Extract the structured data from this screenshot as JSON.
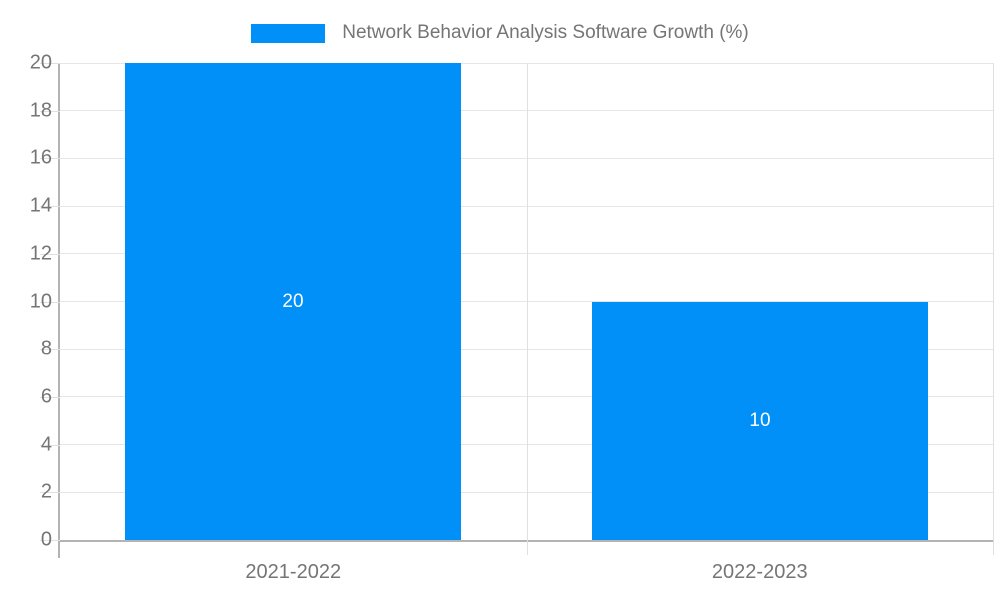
{
  "legend": {
    "label": "Network Behavior Analysis Software Growth (%)"
  },
  "chart_data": {
    "type": "bar",
    "title": "Network Behavior Analysis Software Growth (%)",
    "categories": [
      "2021-2022",
      "2022-2023"
    ],
    "series": [
      {
        "name": "Network Behavior Analysis Software Growth (%)",
        "values": [
          20,
          10
        ]
      }
    ],
    "bar_value_labels": [
      "20",
      "10"
    ],
    "xlabel": "",
    "ylabel": "",
    "ylim": [
      0,
      20
    ],
    "ytick_step": 2,
    "grid": true,
    "legend_position": "top",
    "colors": {
      "bar": "#0190f8",
      "grid": "#e6e6e6",
      "boundary": "#e0e0e0",
      "axis": "#b3b3b3",
      "text": "#757575",
      "bar_label": "#ffffff"
    }
  }
}
